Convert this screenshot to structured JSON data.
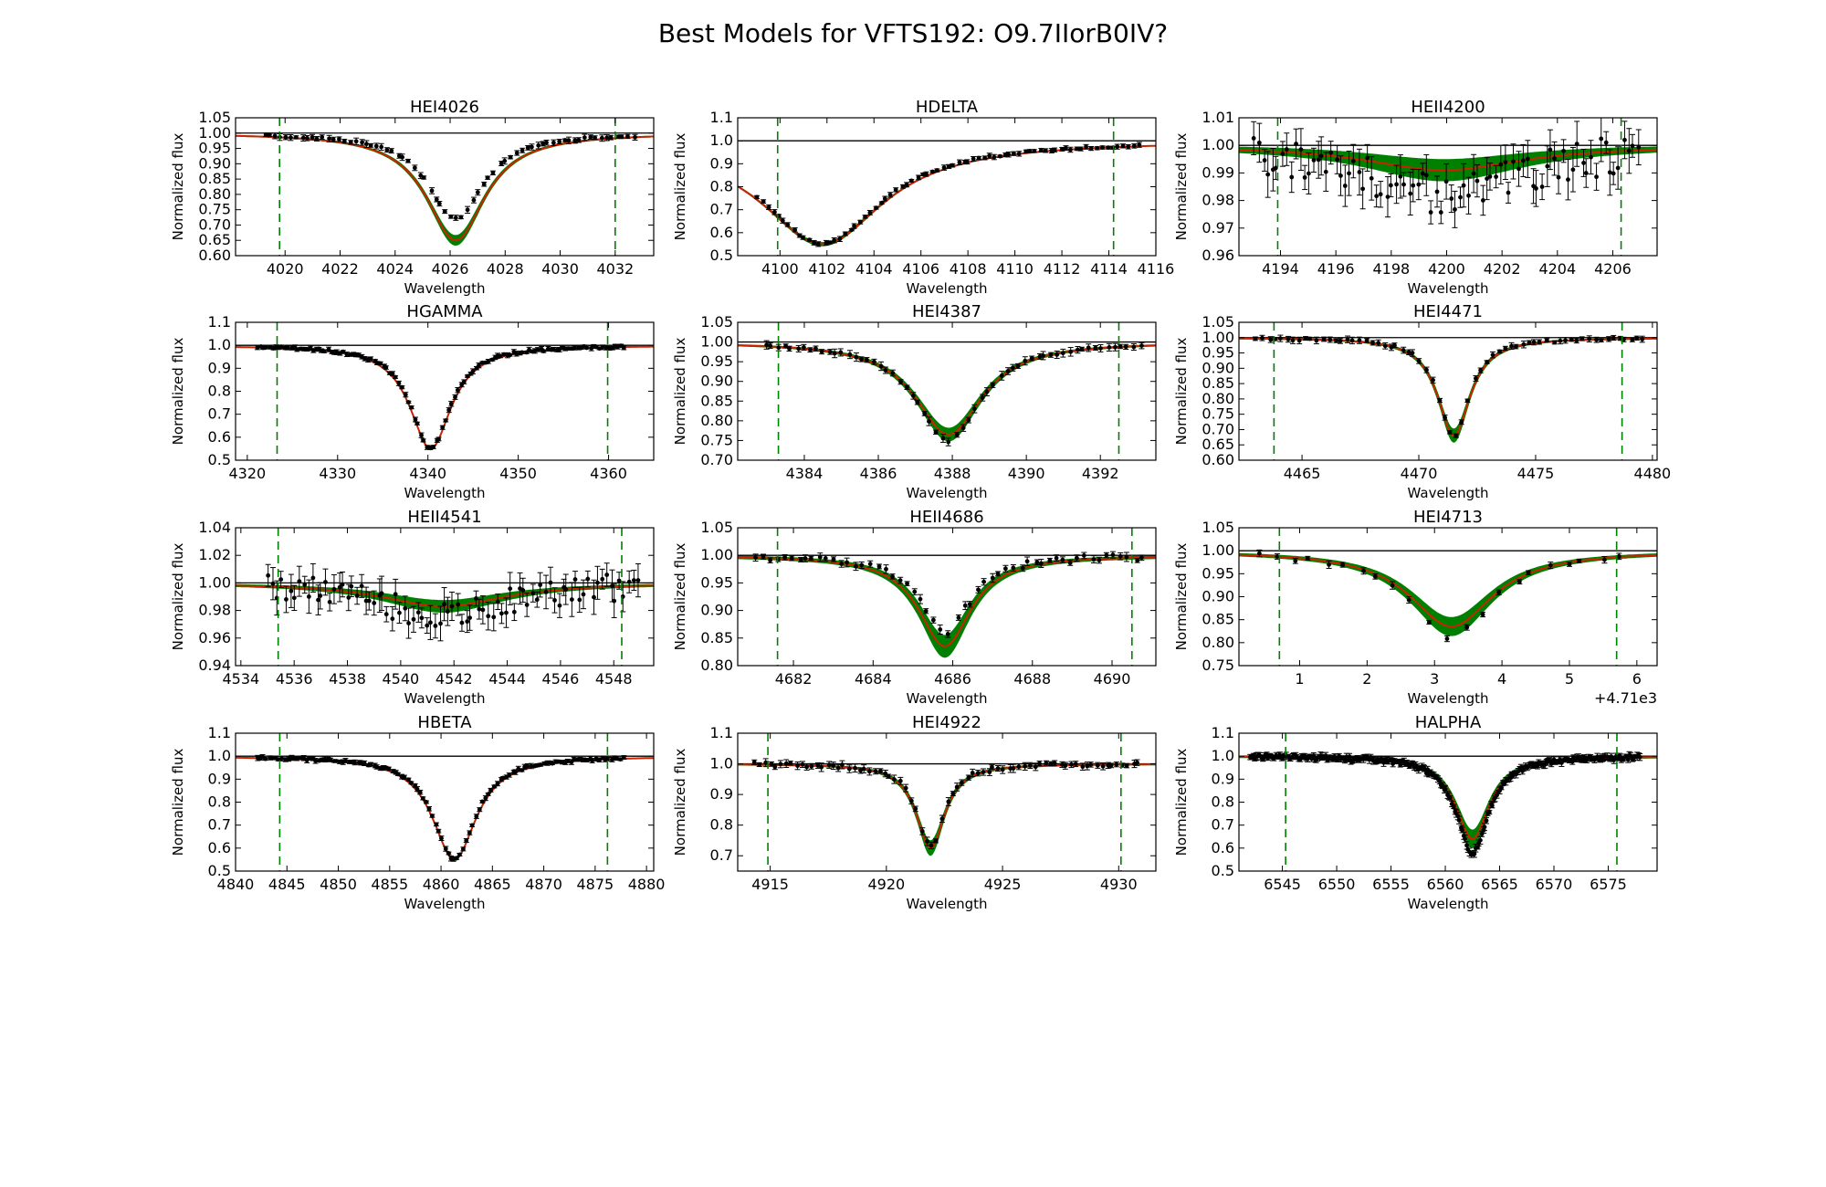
{
  "figure": {
    "title": "Best Models for VFTS192: O9.7IIorB0IV?"
  },
  "colors": {
    "model_band": "#008000",
    "best_model": "#cc2200",
    "data": "#000000",
    "continuum": "#000000",
    "fit_window": "#008000"
  },
  "chart_data": [
    {
      "type": "line",
      "title": "HEI4026",
      "xlabel": "Wavelength",
      "ylabel": "Normalized flux",
      "xlim": [
        4018.2,
        4033.4
      ],
      "ylim": [
        0.6,
        1.05
      ],
      "xticks": [
        4020,
        4022,
        4024,
        4026,
        4028,
        4030,
        4032
      ],
      "xtick_labels": [
        "4020",
        "4022",
        "4024",
        "4026",
        "4028",
        "4030",
        "4032"
      ],
      "yticks": [
        0.6,
        0.65,
        0.7,
        0.75,
        0.8,
        0.85,
        0.9,
        0.95,
        1.0,
        1.05
      ],
      "ytick_labels": [
        "0.60",
        "0.65",
        "0.70",
        "0.75",
        "0.80",
        "0.85",
        "0.90",
        "0.95",
        "1.00",
        "1.05"
      ],
      "fit_window": [
        4019.8,
        4032.0
      ],
      "line_center": 4026.2,
      "model_depth": 0.35,
      "model_width": 1.3,
      "band_halfwidth": 0.015,
      "data_x_range": [
        4019.2,
        4032.8
      ],
      "data_points": 70,
      "data_depth": 0.28,
      "data_err": 0.008,
      "data_scatter": 0.004
    },
    {
      "type": "line",
      "title": "HDELTA",
      "xlabel": "Wavelength",
      "ylabel": "Normalized flux",
      "xlim": [
        4098.2,
        4116.0
      ],
      "ylim": [
        0.5,
        1.1
      ],
      "xticks": [
        4100,
        4102,
        4104,
        4106,
        4108,
        4110,
        4112,
        4114,
        4116
      ],
      "xtick_labels": [
        "4100",
        "4102",
        "4104",
        "4106",
        "4108",
        "4110",
        "4112",
        "4114",
        "4116"
      ],
      "yticks": [
        0.5,
        0.6,
        0.7,
        0.8,
        0.9,
        1.0,
        1.1
      ],
      "ytick_labels": [
        "0.5",
        "0.6",
        "0.7",
        "0.8",
        "0.9",
        "1.0",
        "1.1"
      ],
      "fit_window": [
        4099.9,
        4114.2
      ],
      "line_center": 4101.8,
      "model_depth": 0.45,
      "model_width": 3.2,
      "band_halfwidth": 0.008,
      "data_x_range": [
        4099.0,
        4115.4
      ],
      "data_points": 75,
      "data_depth": 0.45,
      "data_err": 0.008,
      "data_scatter": 0.005
    },
    {
      "type": "line",
      "title": "HEII4200",
      "xlabel": "Wavelength",
      "ylabel": "Normalized flux",
      "xlim": [
        4192.5,
        4207.6
      ],
      "ylim": [
        0.96,
        1.01
      ],
      "xticks": [
        4194,
        4196,
        4198,
        4200,
        4202,
        4204,
        4206
      ],
      "xtick_labels": [
        "4194",
        "4196",
        "4198",
        "4200",
        "4202",
        "4204",
        "4206"
      ],
      "yticks": [
        0.96,
        0.97,
        0.98,
        0.99,
        1.0,
        1.01
      ],
      "ytick_labels": [
        "0.96",
        "0.97",
        "0.98",
        "0.99",
        "1.00",
        "1.01"
      ],
      "fit_window": [
        4193.9,
        4206.3
      ],
      "line_center": 4199.9,
      "model_depth": 0.009,
      "model_width": 3.5,
      "band_halfwidth": 0.0035,
      "data_x_range": [
        4193.0,
        4207.0
      ],
      "data_points": 85,
      "data_depth": 0.018,
      "data_err": 0.006,
      "data_scatter": 0.007
    },
    {
      "type": "line",
      "title": "HGAMMA",
      "xlabel": "Wavelength",
      "ylabel": "Normalized flux",
      "xlim": [
        4318.7,
        4365.0
      ],
      "ylim": [
        0.5,
        1.1
      ],
      "xticks": [
        4320,
        4330,
        4340,
        4350,
        4360
      ],
      "xtick_labels": [
        "4320",
        "4330",
        "4340",
        "4350",
        "4360"
      ],
      "yticks": [
        0.5,
        0.6,
        0.7,
        0.8,
        0.9,
        1.0,
        1.1
      ],
      "ytick_labels": [
        "0.5",
        "0.6",
        "0.7",
        "0.8",
        "0.9",
        "1.0",
        "1.1"
      ],
      "fit_window": [
        4323.3,
        4359.9
      ],
      "line_center": 4340.3,
      "model_depth": 0.45,
      "model_width": 2.8,
      "band_halfwidth": 0.006,
      "data_x_range": [
        4321.0,
        4362.0
      ],
      "data_points": 120,
      "data_depth": 0.45,
      "data_err": 0.008,
      "data_scatter": 0.006
    },
    {
      "type": "line",
      "title": "HEI4387",
      "xlabel": "Wavelength",
      "ylabel": "Normalized flux",
      "xlim": [
        4382.2,
        4393.5
      ],
      "ylim": [
        0.7,
        1.05
      ],
      "xticks": [
        4384,
        4386,
        4388,
        4390,
        4392
      ],
      "xtick_labels": [
        "4384",
        "4386",
        "4388",
        "4390",
        "4392"
      ],
      "yticks": [
        0.7,
        0.75,
        0.8,
        0.85,
        0.9,
        0.95,
        1.0,
        1.05
      ],
      "ytick_labels": [
        "0.70",
        "0.75",
        "0.80",
        "0.85",
        "0.90",
        "0.95",
        "1.00",
        "1.05"
      ],
      "fit_window": [
        4383.3,
        4392.5
      ],
      "line_center": 4387.9,
      "model_depth": 0.235,
      "model_width": 1.1,
      "band_halfwidth": 0.015,
      "data_x_range": [
        4382.9,
        4393.2
      ],
      "data_points": 60,
      "data_depth": 0.25,
      "data_err": 0.008,
      "data_scatter": 0.004
    },
    {
      "type": "line",
      "title": "HEI4471",
      "xlabel": "Wavelength",
      "ylabel": "Normalized flux",
      "xlim": [
        4462.3,
        4480.2
      ],
      "ylim": [
        0.6,
        1.05
      ],
      "xticks": [
        4465,
        4470,
        4475,
        4480
      ],
      "xtick_labels": [
        "4465",
        "4470",
        "4475",
        "4480"
      ],
      "yticks": [
        0.6,
        0.65,
        0.7,
        0.75,
        0.8,
        0.85,
        0.9,
        0.95,
        1.0,
        1.05
      ],
      "ytick_labels": [
        "0.60",
        "0.65",
        "0.70",
        "0.75",
        "0.80",
        "0.85",
        "0.90",
        "0.95",
        "1.00",
        "1.05"
      ],
      "fit_window": [
        4463.8,
        4478.7
      ],
      "line_center": 4471.5,
      "model_depth": 0.32,
      "model_width": 0.85,
      "band_halfwidth": 0.02,
      "data_x_range": [
        4463.0,
        4479.8
      ],
      "data_points": 65,
      "data_depth": 0.32,
      "data_err": 0.008,
      "data_scatter": 0.005
    },
    {
      "type": "line",
      "title": "HEII4541",
      "xlabel": "Wavelength",
      "ylabel": "Normalized flux",
      "xlim": [
        4533.8,
        4549.5
      ],
      "ylim": [
        0.94,
        1.04
      ],
      "xticks": [
        4534,
        4536,
        4538,
        4540,
        4542,
        4544,
        4546,
        4548
      ],
      "xtick_labels": [
        "4534",
        "4536",
        "4538",
        "4540",
        "4542",
        "4544",
        "4546",
        "4548"
      ],
      "yticks": [
        0.94,
        0.96,
        0.98,
        1.0,
        1.02,
        1.04
      ],
      "ytick_labels": [
        "0.94",
        "0.96",
        "0.98",
        "1.00",
        "1.02",
        "1.04"
      ],
      "fit_window": [
        4535.4,
        4548.3
      ],
      "line_center": 4541.6,
      "model_depth": 0.017,
      "model_width": 2.8,
      "band_halfwidth": 0.004,
      "data_x_range": [
        4535.0,
        4549.0
      ],
      "data_points": 85,
      "data_depth": 0.025,
      "data_err": 0.009,
      "data_scatter": 0.01
    },
    {
      "type": "line",
      "title": "HEII4686",
      "xlabel": "Wavelength",
      "ylabel": "Normalized flux",
      "xlim": [
        4680.6,
        4691.1
      ],
      "ylim": [
        0.8,
        1.05
      ],
      "xticks": [
        4682,
        4684,
        4686,
        4688,
        4690
      ],
      "xtick_labels": [
        "4682",
        "4684",
        "4686",
        "4688",
        "4690"
      ],
      "yticks": [
        0.8,
        0.85,
        0.9,
        0.95,
        1.0,
        1.05
      ],
      "ytick_labels": [
        "0.80",
        "0.85",
        "0.90",
        "0.95",
        "1.00",
        "1.05"
      ],
      "fit_window": [
        4681.6,
        4690.5
      ],
      "line_center": 4685.8,
      "model_depth": 0.165,
      "model_width": 0.8,
      "band_halfwidth": 0.018,
      "data_x_range": [
        4681.0,
        4690.9
      ],
      "data_points": 55,
      "data_depth": 0.14,
      "data_err": 0.006,
      "data_scatter": 0.006
    },
    {
      "type": "line",
      "title": "HEI4713",
      "xlabel": "Wavelength",
      "ylabel": "Normalized flux",
      "x_offset_label": "+4.71e3",
      "xlim": [
        0.1,
        6.3
      ],
      "ylim": [
        0.75,
        1.05
      ],
      "xticks": [
        1,
        2,
        3,
        4,
        5,
        6
      ],
      "xtick_labels": [
        "1",
        "2",
        "3",
        "4",
        "5",
        "6"
      ],
      "yticks": [
        0.75,
        0.8,
        0.85,
        0.9,
        0.95,
        1.0,
        1.05
      ],
      "ytick_labels": [
        "0.75",
        "0.80",
        "0.85",
        "0.90",
        "0.95",
        "1.00",
        "1.05"
      ],
      "fit_window": [
        0.7,
        5.7
      ],
      "line_center": 3.25,
      "model_depth": 0.165,
      "model_width": 0.75,
      "band_halfwidth": 0.018,
      "data_x_range": [
        0.3,
        5.9
      ],
      "data_points": 22,
      "data_depth": 0.19,
      "data_err": 0.006,
      "data_scatter": 0.006
    },
    {
      "type": "line",
      "title": "HBETA",
      "xlabel": "Wavelength",
      "ylabel": "Normalized flux",
      "xlim": [
        4840.0,
        4880.7
      ],
      "ylim": [
        0.5,
        1.1
      ],
      "xticks": [
        4840,
        4845,
        4850,
        4855,
        4860,
        4865,
        4870,
        4875,
        4880
      ],
      "xtick_labels": [
        "4840",
        "4845",
        "4850",
        "4855",
        "4860",
        "4865",
        "4870",
        "4875",
        "4880"
      ],
      "yticks": [
        0.5,
        0.6,
        0.7,
        0.8,
        0.9,
        1.0,
        1.1
      ],
      "ytick_labels": [
        "0.5",
        "0.6",
        "0.7",
        "0.8",
        "0.9",
        "1.0",
        "1.1"
      ],
      "fit_window": [
        4844.3,
        4876.2
      ],
      "line_center": 4861.3,
      "model_depth": 0.45,
      "model_width": 2.6,
      "band_halfwidth": 0.006,
      "data_x_range": [
        4842.0,
        4878.0
      ],
      "data_points": 120,
      "data_depth": 0.45,
      "data_err": 0.008,
      "data_scatter": 0.006
    },
    {
      "type": "line",
      "title": "HEI4922",
      "xlabel": "Wavelength",
      "ylabel": "Normalized flux",
      "xlim": [
        4913.6,
        4931.6
      ],
      "ylim": [
        0.65,
        1.1
      ],
      "xticks": [
        4915,
        4920,
        4925,
        4930
      ],
      "xtick_labels": [
        "4915",
        "4920",
        "4925",
        "4930"
      ],
      "yticks": [
        0.7,
        0.8,
        0.9,
        1.0,
        1.1
      ],
      "ytick_labels": [
        "0.7",
        "0.8",
        "0.9",
        "1.0",
        "1.1"
      ],
      "fit_window": [
        4914.9,
        4930.1
      ],
      "line_center": 4921.9,
      "model_depth": 0.275,
      "model_width": 0.75,
      "band_halfwidth": 0.022,
      "data_x_range": [
        4914.3,
        4931.0
      ],
      "data_points": 75,
      "data_depth": 0.27,
      "data_err": 0.01,
      "data_scatter": 0.008
    },
    {
      "type": "line",
      "title": "HALPHA",
      "xlabel": "Wavelength",
      "ylabel": "Normalized flux",
      "xlim": [
        6541.0,
        6579.5
      ],
      "ylim": [
        0.5,
        1.1
      ],
      "xticks": [
        6545,
        6550,
        6555,
        6560,
        6565,
        6570,
        6575
      ],
      "xtick_labels": [
        "6545",
        "6550",
        "6555",
        "6560",
        "6565",
        "6570",
        "6575"
      ],
      "yticks": [
        0.5,
        0.6,
        0.7,
        0.8,
        0.9,
        1.0,
        1.1
      ],
      "ytick_labels": [
        "0.5",
        "0.6",
        "0.7",
        "0.8",
        "0.9",
        "1.0",
        "1.1"
      ],
      "fit_window": [
        6545.3,
        6575.8
      ],
      "line_center": 6562.5,
      "model_depth": 0.36,
      "model_width": 1.9,
      "band_halfwidth": 0.035,
      "data_x_range": [
        6542.0,
        6578.0
      ],
      "data_points": 260,
      "data_depth": 0.42,
      "data_err": 0.012,
      "data_scatter": 0.01
    }
  ]
}
